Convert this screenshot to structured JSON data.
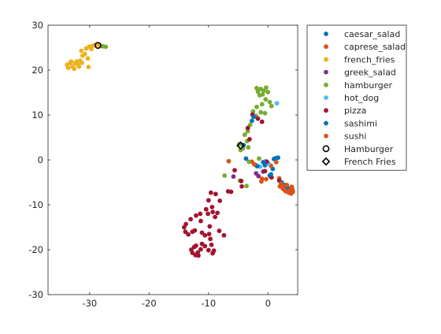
{
  "chart_data": {
    "type": "scatter",
    "title": "",
    "xlabel": "",
    "ylabel": "",
    "xlim": [
      -37,
      5
    ],
    "ylim": [
      -30,
      30
    ],
    "x_ticks": [
      -30,
      -20,
      -10,
      0
    ],
    "y_ticks": [
      -30,
      -20,
      -10,
      0,
      10,
      20,
      30
    ],
    "x_tick_labels": [
      "-30",
      "-20",
      "-10",
      "0"
    ],
    "y_tick_labels": [
      "-30",
      "-20",
      "-10",
      "0",
      "10",
      "20",
      "30"
    ],
    "grid": false,
    "legend_position": "outside-top-right",
    "series": [
      {
        "name": "caesar_salad",
        "color": "#0072BD",
        "marker": "dot",
        "points": [
          [
            -2.7,
            8.7
          ],
          [
            -0.5,
            -1.2
          ],
          [
            0.3,
            -3.5
          ],
          [
            1.3,
            0.4
          ],
          [
            -2.0,
            -1.2
          ],
          [
            2.8,
            -5.6
          ],
          [
            3.6,
            -6.4
          ],
          [
            0.8,
            -2.0
          ],
          [
            -0.8,
            -0.5
          ],
          [
            1.0,
            0.2
          ]
        ]
      },
      {
        "name": "caprese_salad",
        "color": "#D95319",
        "marker": "dot",
        "points": [
          [
            -6.6,
            -0.3
          ],
          [
            -2.7,
            -0.4
          ],
          [
            1.9,
            -4.1
          ],
          [
            2.6,
            -5.9
          ],
          [
            3.3,
            -6.7
          ],
          [
            3.8,
            -6.9
          ],
          [
            4.0,
            -6.0
          ],
          [
            3.5,
            -7.3
          ],
          [
            -1.0,
            -4.2
          ],
          [
            -0.3,
            -4.3
          ],
          [
            1.4,
            -0.5
          ],
          [
            0.5,
            -1.3
          ]
        ]
      },
      {
        "name": "french_fries",
        "color": "#EDB120",
        "marker": "dot",
        "points": [
          [
            -33.8,
            21.2
          ],
          [
            -33.3,
            21.6
          ],
          [
            -32.9,
            20.8
          ],
          [
            -32.4,
            21.5
          ],
          [
            -32.0,
            21.2
          ],
          [
            -33.6,
            20.5
          ],
          [
            -32.6,
            20.3
          ],
          [
            -31.8,
            20.8
          ],
          [
            -31.3,
            21.6
          ],
          [
            -30.3,
            22.6
          ],
          [
            -30.2,
            20.7
          ],
          [
            -30.8,
            23.6
          ],
          [
            -31.4,
            24.3
          ],
          [
            -30.6,
            24.8
          ],
          [
            -30.1,
            25.2
          ],
          [
            -29.6,
            25.4
          ],
          [
            -29.1,
            25.6
          ],
          [
            -28.7,
            25.7
          ],
          [
            -28.3,
            25.5
          ],
          [
            -29.7,
            24.7
          ],
          [
            -31.2,
            23.2
          ],
          [
            -31.6,
            22.1
          ],
          [
            -33.1,
            21.9
          ],
          [
            -32.2,
            21.9
          ]
        ]
      },
      {
        "name": "greek_salad",
        "color": "#7E2F8E",
        "marker": "dot",
        "points": [
          [
            -5.8,
            -3.7
          ],
          [
            -2.0,
            -3.0
          ],
          [
            -1.6,
            -3.6
          ],
          [
            -0.8,
            -2.6
          ]
        ]
      },
      {
        "name": "hamburger",
        "color": "#77AC30",
        "marker": "dot",
        "points": [
          [
            -27.3,
            25.2
          ],
          [
            -27.8,
            25.3
          ],
          [
            -1.7,
            15.2
          ],
          [
            -1.2,
            15.8
          ],
          [
            -0.7,
            15.4
          ],
          [
            -0.3,
            16.1
          ],
          [
            -1.9,
            16.0
          ],
          [
            -0.9,
            14.6
          ],
          [
            0.0,
            15.1
          ],
          [
            -1.4,
            14.4
          ],
          [
            -0.4,
            13.5
          ],
          [
            0.3,
            12.9
          ],
          [
            -1.0,
            12.4
          ],
          [
            -1.9,
            11.8
          ],
          [
            0.6,
            12.0
          ],
          [
            -2.5,
            10.8
          ],
          [
            -2.0,
            9.8
          ],
          [
            -1.2,
            10.6
          ],
          [
            -3.0,
            7.8
          ],
          [
            -3.4,
            6.4
          ],
          [
            -3.9,
            5.6
          ],
          [
            -3.5,
            4.2
          ],
          [
            -4.8,
            3.5
          ],
          [
            -4.2,
            2.6
          ],
          [
            -3.3,
            2.8
          ],
          [
            -4.6,
            2.2
          ],
          [
            -0.5,
            10.4
          ],
          [
            -1.5,
            0.3
          ],
          [
            -3.2,
            -0.4
          ],
          [
            -4.7,
            -4.6
          ],
          [
            -7.3,
            -3.5
          ],
          [
            -3.6,
            -5.8
          ]
        ]
      },
      {
        "name": "hot_dog",
        "color": "#4DBEEE",
        "marker": "dot",
        "points": [
          [
            1.5,
            12.6
          ],
          [
            -0.4,
            -0.3
          ],
          [
            -1.3,
            -1.5
          ],
          [
            0.1,
            -0.8
          ]
        ]
      },
      {
        "name": "pizza",
        "color": "#A2142F",
        "marker": "dot",
        "points": [
          [
            -2.6,
            10.1
          ],
          [
            -1.7,
            9.2
          ],
          [
            -1.0,
            8.5
          ],
          [
            -3.4,
            7.1
          ],
          [
            -3.1,
            4.6
          ],
          [
            -0.2,
            -0.4
          ],
          [
            -0.5,
            -2.5
          ],
          [
            0.6,
            -3.9
          ],
          [
            1.9,
            -4.6
          ],
          [
            -5.6,
            -2.3
          ],
          [
            -4.4,
            -5.9
          ],
          [
            -6.2,
            -7.1
          ],
          [
            -8.8,
            -7.6
          ],
          [
            -9.6,
            -7.3
          ],
          [
            -9.4,
            -10.5
          ],
          [
            -10.4,
            -11.0
          ],
          [
            -10.0,
            -9.0
          ],
          [
            -9.3,
            -11.6
          ],
          [
            -8.9,
            -12.7
          ],
          [
            -10.1,
            -12.0
          ],
          [
            -11.4,
            -12.0
          ],
          [
            -12.1,
            -12.4
          ],
          [
            -13.0,
            -13.2
          ],
          [
            -13.8,
            -14.3
          ],
          [
            -14.1,
            -15.0
          ],
          [
            -13.9,
            -16.0
          ],
          [
            -13.4,
            -16.6
          ],
          [
            -12.7,
            -16.0
          ],
          [
            -12.3,
            -15.7
          ],
          [
            -11.1,
            -16.2
          ],
          [
            -10.6,
            -16.8
          ],
          [
            -9.9,
            -16.5
          ],
          [
            -9.7,
            -17.6
          ],
          [
            -9.5,
            -18.9
          ],
          [
            -9.1,
            -20.2
          ],
          [
            -9.3,
            -20.8
          ],
          [
            -10.0,
            -20.1
          ],
          [
            -10.6,
            -19.2
          ],
          [
            -11.1,
            -18.7
          ],
          [
            -11.3,
            -19.9
          ],
          [
            -11.8,
            -20.6
          ],
          [
            -12.2,
            -21.2
          ],
          [
            -12.7,
            -20.7
          ],
          [
            -12.9,
            -20.0
          ],
          [
            -12.4,
            -19.4
          ],
          [
            -11.7,
            -21.3
          ],
          [
            -12.1,
            -19.1
          ],
          [
            -8.2,
            -15.8
          ],
          [
            -7.4,
            -16.8
          ],
          [
            -9.8,
            -14.8
          ],
          [
            -11.3,
            -13.6
          ],
          [
            -8.1,
            -9.1
          ],
          [
            -4.5,
            -4.7
          ],
          [
            -6.7,
            -7.0
          ],
          [
            -8.5,
            -11.8
          ]
        ]
      },
      {
        "name": "sashimi",
        "color": "#0072BD",
        "marker": "dot",
        "points": [
          [
            -2.4,
            9.6
          ],
          [
            -4.1,
            3.3
          ],
          [
            -3.7,
            0.3
          ],
          [
            -1.8,
            -1.4
          ],
          [
            -0.7,
            -0.6
          ],
          [
            0.5,
            -3.2
          ],
          [
            1.7,
            0.5
          ],
          [
            3.1,
            -6.2
          ],
          [
            2.3,
            -5.0
          ]
        ]
      },
      {
        "name": "sushi",
        "color": "#D95319",
        "marker": "dot",
        "points": [
          [
            -2.3,
            -1.0
          ],
          [
            -1.1,
            -4.8
          ],
          [
            2.2,
            -5.3
          ],
          [
            2.5,
            -6.4
          ],
          [
            3.0,
            -7.0
          ],
          [
            3.6,
            -6.9
          ],
          [
            4.1,
            -6.5
          ],
          [
            3.2,
            -5.6
          ],
          [
            2.8,
            -6.7
          ],
          [
            2.0,
            -5.9
          ],
          [
            3.9,
            -7.5
          ],
          [
            4.2,
            -7.1
          ]
        ]
      },
      {
        "name": "Hamburger",
        "color": "#000000",
        "marker": "circle",
        "points": [
          [
            -28.6,
            25.5
          ]
        ]
      },
      {
        "name": "French Fries",
        "color": "#000000",
        "marker": "diamond",
        "points": [
          [
            -4.6,
            3.2
          ]
        ]
      }
    ]
  }
}
